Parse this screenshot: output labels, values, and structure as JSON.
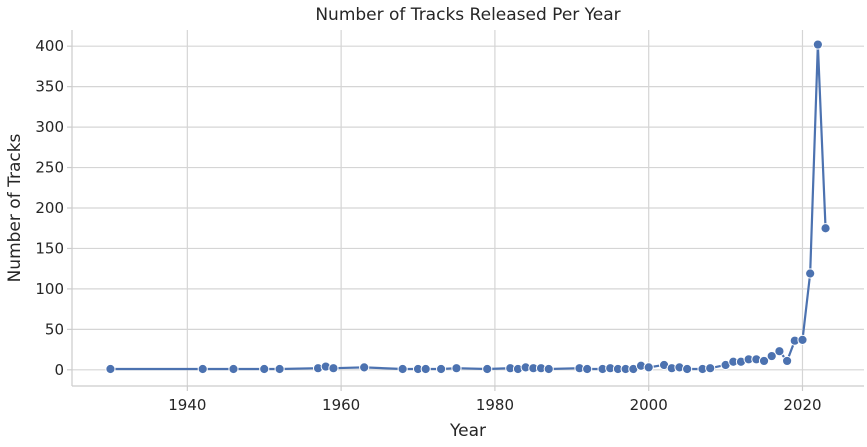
{
  "chart_data": {
    "type": "line",
    "title": "Number of Tracks Released Per Year",
    "xlabel": "Year",
    "ylabel": "Number of Tracks",
    "xlim": [
      1925,
      2028
    ],
    "ylim": [
      -20,
      420
    ],
    "x_ticks": [
      1940,
      1960,
      1980,
      2000,
      2020
    ],
    "y_ticks": [
      0,
      50,
      100,
      150,
      200,
      250,
      300,
      350,
      400
    ],
    "grid": true,
    "marker": "circle",
    "series": [
      {
        "color": "#4c72b0",
        "x": [
          1930,
          1942,
          1946,
          1950,
          1952,
          1957,
          1958,
          1959,
          1963,
          1968,
          1970,
          1971,
          1973,
          1975,
          1979,
          1982,
          1983,
          1984,
          1985,
          1986,
          1987,
          1991,
          1992,
          1994,
          1995,
          1996,
          1997,
          1998,
          1999,
          2000,
          2002,
          2003,
          2004,
          2005,
          2007,
          2008,
          2010,
          2011,
          2012,
          2013,
          2014,
          2015,
          2016,
          2017,
          2018,
          2019,
          2020,
          2021,
          2022,
          2023
        ],
        "y": [
          1,
          1,
          1,
          1,
          1,
          2,
          4,
          2,
          3,
          1,
          1,
          1,
          1,
          2,
          1,
          2,
          1,
          3,
          2,
          2,
          1,
          2,
          1,
          1,
          2,
          1,
          1,
          1,
          5,
          3,
          6,
          2,
          3,
          1,
          1,
          2,
          6,
          10,
          10,
          13,
          13,
          11,
          17,
          23,
          11,
          36,
          37,
          119,
          402,
          175
        ]
      }
    ]
  }
}
